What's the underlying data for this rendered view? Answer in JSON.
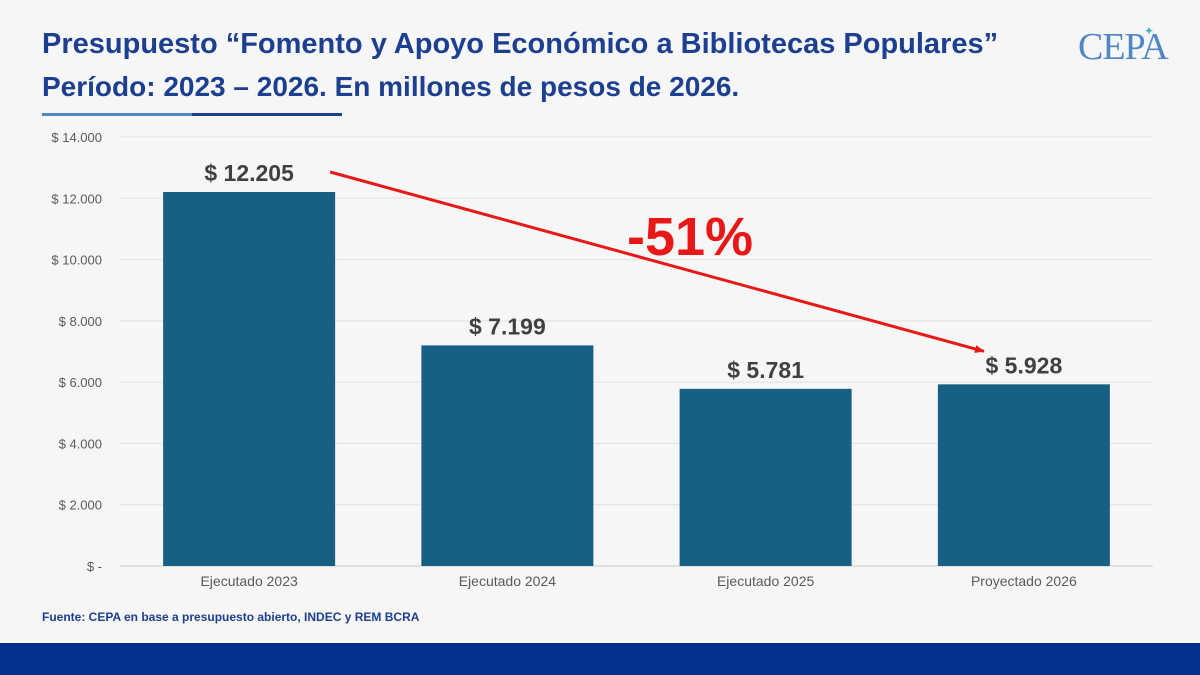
{
  "header": {
    "title": "Presupuesto “Fomento y Apoyo Económico a Bibliotecas Populares”",
    "subtitle": "Período: 2023 – 2026. En millones de pesos de 2026."
  },
  "logo": {
    "text": "CEPA"
  },
  "chart_data": {
    "type": "bar",
    "categories": [
      "Ejecutado 2023",
      "Ejecutado 2024",
      "Ejecutado 2025",
      "Proyectado 2026"
    ],
    "values": [
      12205,
      7199,
      5781,
      5928
    ],
    "value_labels": [
      "$ 12.205",
      "$ 7.199",
      "$ 5.781",
      "$ 5.928"
    ],
    "ylim": [
      0,
      14000
    ],
    "yticks": [
      0,
      2000,
      4000,
      6000,
      8000,
      10000,
      12000,
      14000
    ],
    "ytick_labels": [
      "$ -",
      "$ 2.000",
      "$ 4.000",
      "$ 6.000",
      "$ 8.000",
      "$ 10.000",
      "$ 12.000",
      "$ 14.000"
    ],
    "grid": true,
    "bar_color": "#185f84",
    "annotation": {
      "text": "-51%",
      "from": "Ejecutado 2023",
      "to": "Proyectado 2026",
      "color": "#e81818"
    },
    "title": "",
    "xlabel": "",
    "ylabel": ""
  },
  "footer": {
    "source": "Fuente: CEPA en base a presupuesto  abierto, INDEC y REM BCRA"
  }
}
